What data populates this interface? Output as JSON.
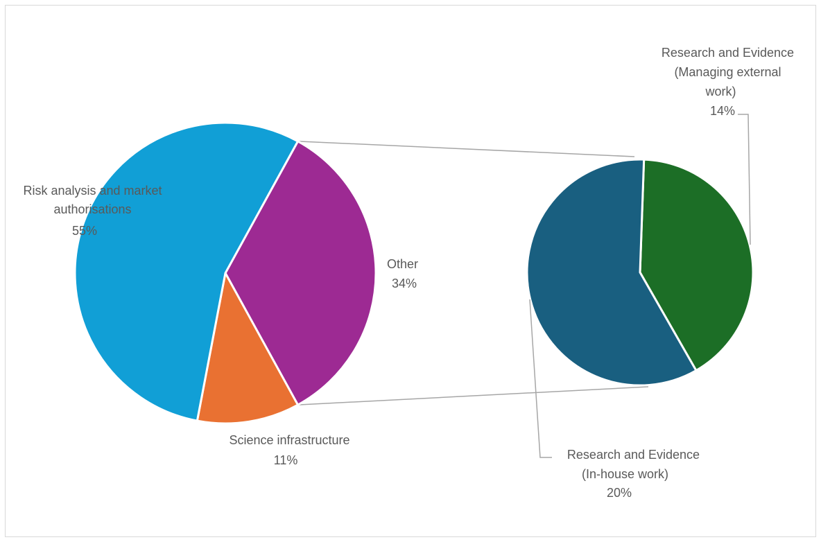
{
  "chart_data": {
    "type": "pie",
    "subtype": "pie-of-pie",
    "title": "",
    "main_pie": {
      "slices": [
        {
          "label_lines": [
            "Risk analysis and market",
            "authorisations"
          ],
          "value_label": "55%",
          "value": 55,
          "color": "#119fd6"
        },
        {
          "label_lines": [
            "Other"
          ],
          "value_label": "34%",
          "value": 34,
          "color": "#9d2a93"
        },
        {
          "label_lines": [
            "Science infrastructure"
          ],
          "value_label": "11%",
          "value": 11,
          "color": "#e97132"
        }
      ]
    },
    "secondary_pie": {
      "slices": [
        {
          "label_lines": [
            "Research and Evidence",
            "(Managing external",
            "work)"
          ],
          "value_label": "14%",
          "value": 14,
          "color": "#1c6e26"
        },
        {
          "label_lines": [
            "Research and Evidence",
            "(In-house work)"
          ],
          "value_label": "20%",
          "value": 20,
          "color": "#195f80"
        }
      ]
    },
    "legend": "none",
    "slice_border_color": "#ffffff",
    "connector_color": "#a6a6a6"
  }
}
